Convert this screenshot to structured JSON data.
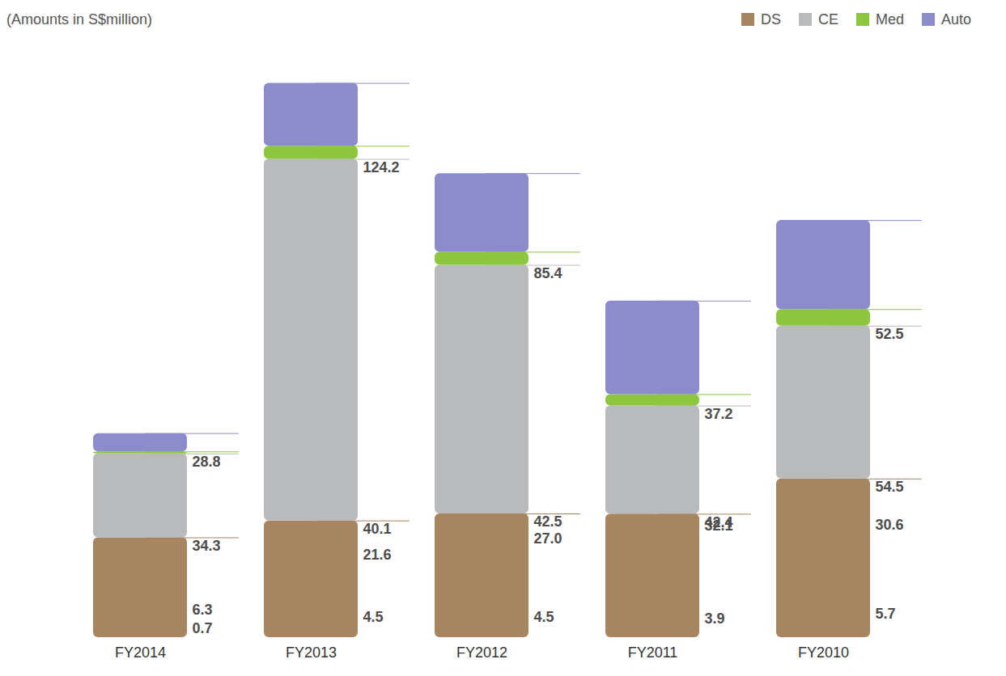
{
  "chart_data": {
    "type": "bar",
    "title": "(Amounts in S$million)",
    "categories": [
      "FY2014",
      "FY2013",
      "FY2012",
      "FY2011",
      "FY2010"
    ],
    "series": [
      {
        "name": "DS",
        "color": "#a88561",
        "values": [
          34.3,
          40.1,
          42.5,
          42.4,
          54.5
        ],
        "value_labels": [
          "34.3",
          "40.1",
          "42.5",
          "42.4",
          "54.5"
        ]
      },
      {
        "name": "CE",
        "color": "#b9babc",
        "values": [
          28.8,
          124.2,
          85.4,
          37.2,
          52.5
        ],
        "value_labels": [
          "28.8",
          "124.2",
          "85.4",
          "37.2",
          "52.5"
        ]
      },
      {
        "name": "Med",
        "color": "#8dc63f",
        "values": [
          0.7,
          4.5,
          4.5,
          3.9,
          5.7
        ],
        "value_labels": [
          "0.7",
          "4.5",
          "4.5",
          "3.9",
          "5.7"
        ]
      },
      {
        "name": "Auto",
        "color": "#8c8ccc",
        "values": [
          6.3,
          21.6,
          27.0,
          32.1,
          30.6
        ],
        "value_labels": [
          "6.3",
          "21.6",
          "27.0",
          "32.1",
          "30.6"
        ]
      }
    ],
    "stacked": true,
    "data_labels": true,
    "legend": "top-right",
    "tick_labels": "x",
    "ylim": [
      0,
      200
    ]
  }
}
